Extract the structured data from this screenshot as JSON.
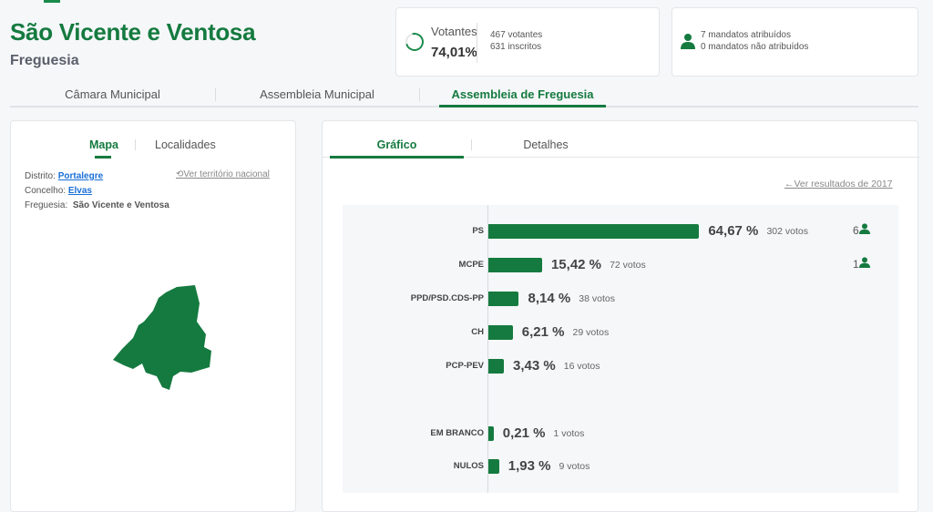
{
  "header": {
    "title": "São Vicente e Ventosa",
    "subtitle": "Freguesia"
  },
  "turnout": {
    "label": "Votantes",
    "percent": "74,01%",
    "percent_value": 74.01,
    "voters": "467 votantes",
    "registered": "631 inscritos"
  },
  "mandates": {
    "assigned": "7 mandatos atribuídos",
    "unassigned": "0 mandatos não atribuídos",
    "icon": "person-icon"
  },
  "tabs": [
    {
      "label": "Câmara Municipal"
    },
    {
      "label": "Assembleia Municipal"
    },
    {
      "label": "Assembleia de Freguesia",
      "active": true
    }
  ],
  "left_panel": {
    "tabs": [
      {
        "label": "Mapa",
        "active": true
      },
      {
        "label": "Localidades"
      }
    ],
    "distrito_label": "Distrito:",
    "distrito": "Portalegre",
    "concelho_label": "Concelho:",
    "concelho": "Elvas",
    "freguesia_label": "Freguesia:",
    "freguesia": "São Vicente e Ventosa",
    "national_link": "Ver território nacional",
    "map_color": "#157a3f"
  },
  "right_panel": {
    "tabs": [
      {
        "label": "Gráfico",
        "active": true
      },
      {
        "label": "Detalhes"
      }
    ],
    "previous_link": "Ver resultados de 2017"
  },
  "accent": "#157a3f",
  "chart_data": {
    "type": "bar",
    "orientation": "horizontal",
    "xlim": [
      0,
      100
    ],
    "categories": [
      "PS",
      "MCPE",
      "PPD/PSD.CDS-PP",
      "CH",
      "PCP-PEV",
      "EM BRANCO",
      "NULOS"
    ],
    "values": [
      64.67,
      15.42,
      8.14,
      6.21,
      3.43,
      0.21,
      1.93
    ],
    "value_labels": [
      "64,67 %",
      "15,42 %",
      "8,14 %",
      "6,21 %",
      "3,43 %",
      "0,21 %",
      "1,93 %"
    ],
    "votes": [
      "302 votos",
      "72 votos",
      "38 votos",
      "29 votos",
      "16 votos",
      "1 votos",
      "9 votos"
    ],
    "seats": [
      "6",
      "1",
      "",
      "",
      "",
      "",
      ""
    ]
  }
}
